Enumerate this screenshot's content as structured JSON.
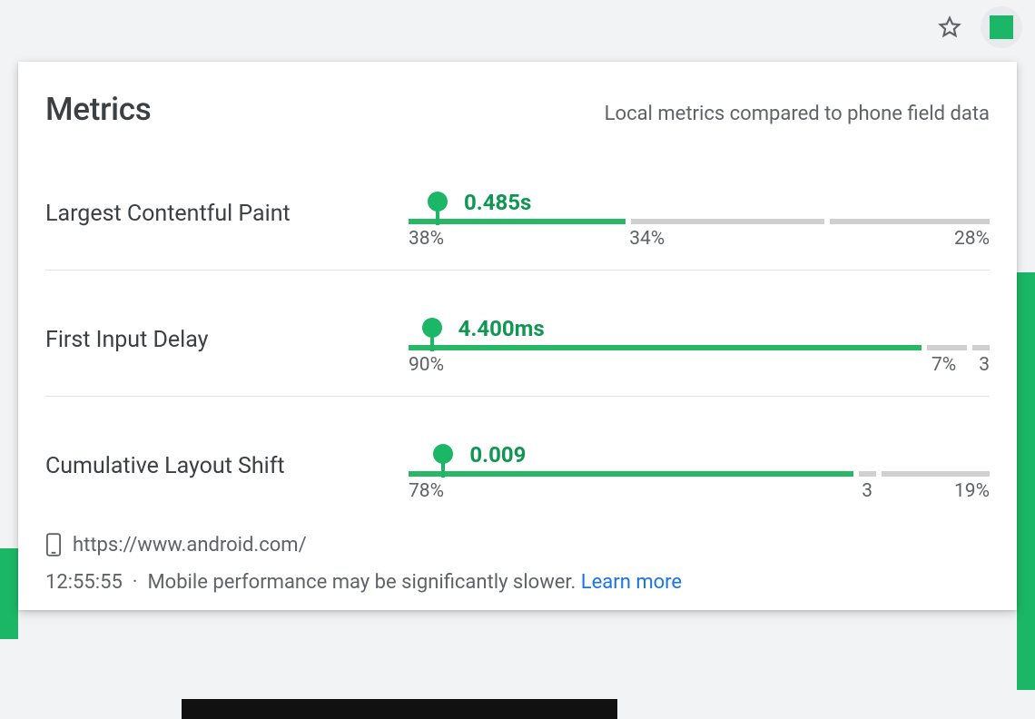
{
  "colors": {
    "good": "#28b765",
    "neutral": "#d0d0d0",
    "marker": "#1bb666",
    "value_text": "#109652",
    "text": "#3c4043",
    "muted": "#5f6368",
    "link": "#1a73e8",
    "panel_bg": "#ffffff",
    "chrome_bg": "#f1f3f4"
  },
  "browser": {
    "star_icon": "star-icon",
    "extension_color": "#1bb666"
  },
  "header": {
    "title": "Metrics",
    "subtitle": "Local metrics compared to phone field data"
  },
  "metrics": [
    {
      "name": "Largest Contentful Paint",
      "value_label": "0.485s",
      "marker_position_pct": 5,
      "segments": [
        {
          "width_pct": 38,
          "color_key": "good",
          "label": "38%",
          "label_align": "left"
        },
        {
          "width_pct": 34,
          "color_key": "neutral",
          "label": "34%",
          "label_align": "left"
        },
        {
          "width_pct": 28,
          "color_key": "neutral",
          "label": "28%",
          "label_align": "right"
        }
      ]
    },
    {
      "name": "First Input Delay",
      "value_label": "4.400ms",
      "marker_position_pct": 4,
      "segments": [
        {
          "width_pct": 90,
          "color_key": "good",
          "label": "90%",
          "label_align": "left"
        },
        {
          "width_pct": 7,
          "color_key": "neutral",
          "label": "7%",
          "label_align": "left"
        },
        {
          "width_pct": 3,
          "color_key": "neutral",
          "label": "3",
          "label_align": "right"
        }
      ]
    },
    {
      "name": "Cumulative Layout Shift",
      "value_label": "0.009",
      "marker_position_pct": 6,
      "segments": [
        {
          "width_pct": 78,
          "color_key": "good",
          "label": "78%",
          "label_align": "left"
        },
        {
          "width_pct": 3,
          "color_key": "neutral",
          "label": "3",
          "label_align": "left"
        },
        {
          "width_pct": 19,
          "color_key": "neutral",
          "label": "19%",
          "label_align": "right"
        }
      ]
    }
  ],
  "footer": {
    "device_icon": "phone-icon",
    "url": "https://www.android.com/",
    "timestamp": "12:55:55",
    "separator": "·",
    "message": "Mobile performance may be significantly slower.",
    "learn_more": "Learn more"
  }
}
